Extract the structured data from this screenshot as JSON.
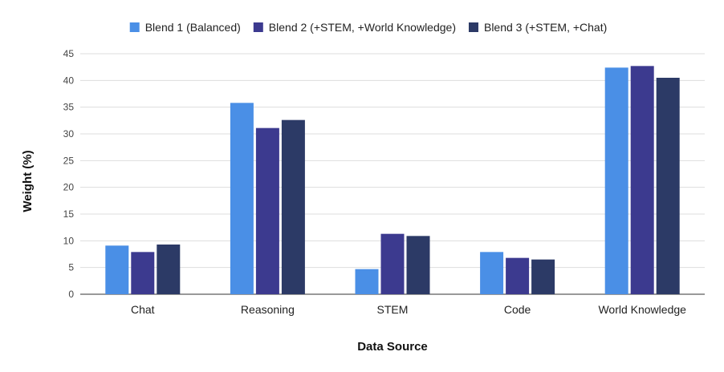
{
  "chart_data": {
    "type": "bar",
    "title": "",
    "xlabel": "Data Source",
    "ylabel": "Weight (%)",
    "ylim": [
      0,
      45
    ],
    "yticks": [
      0,
      5,
      10,
      15,
      20,
      25,
      30,
      35,
      40,
      45
    ],
    "grid": true,
    "legend_position": "top",
    "categories": [
      "Chat",
      "Reasoning",
      "STEM",
      "Code",
      "World Knowledge"
    ],
    "series": [
      {
        "name": "Blend 1 (Balanced)",
        "color": "#4a8fe6",
        "values": [
          9.1,
          35.8,
          4.7,
          7.9,
          42.4
        ]
      },
      {
        "name": "Blend 2 (+STEM, +World Knowledge)",
        "color": "#3c3a8f",
        "values": [
          7.9,
          31.1,
          11.3,
          6.8,
          42.7
        ]
      },
      {
        "name": "Blend 3 (+STEM, +Chat)",
        "color": "#2c3a66",
        "values": [
          9.3,
          32.6,
          10.9,
          6.5,
          40.5
        ]
      }
    ]
  }
}
